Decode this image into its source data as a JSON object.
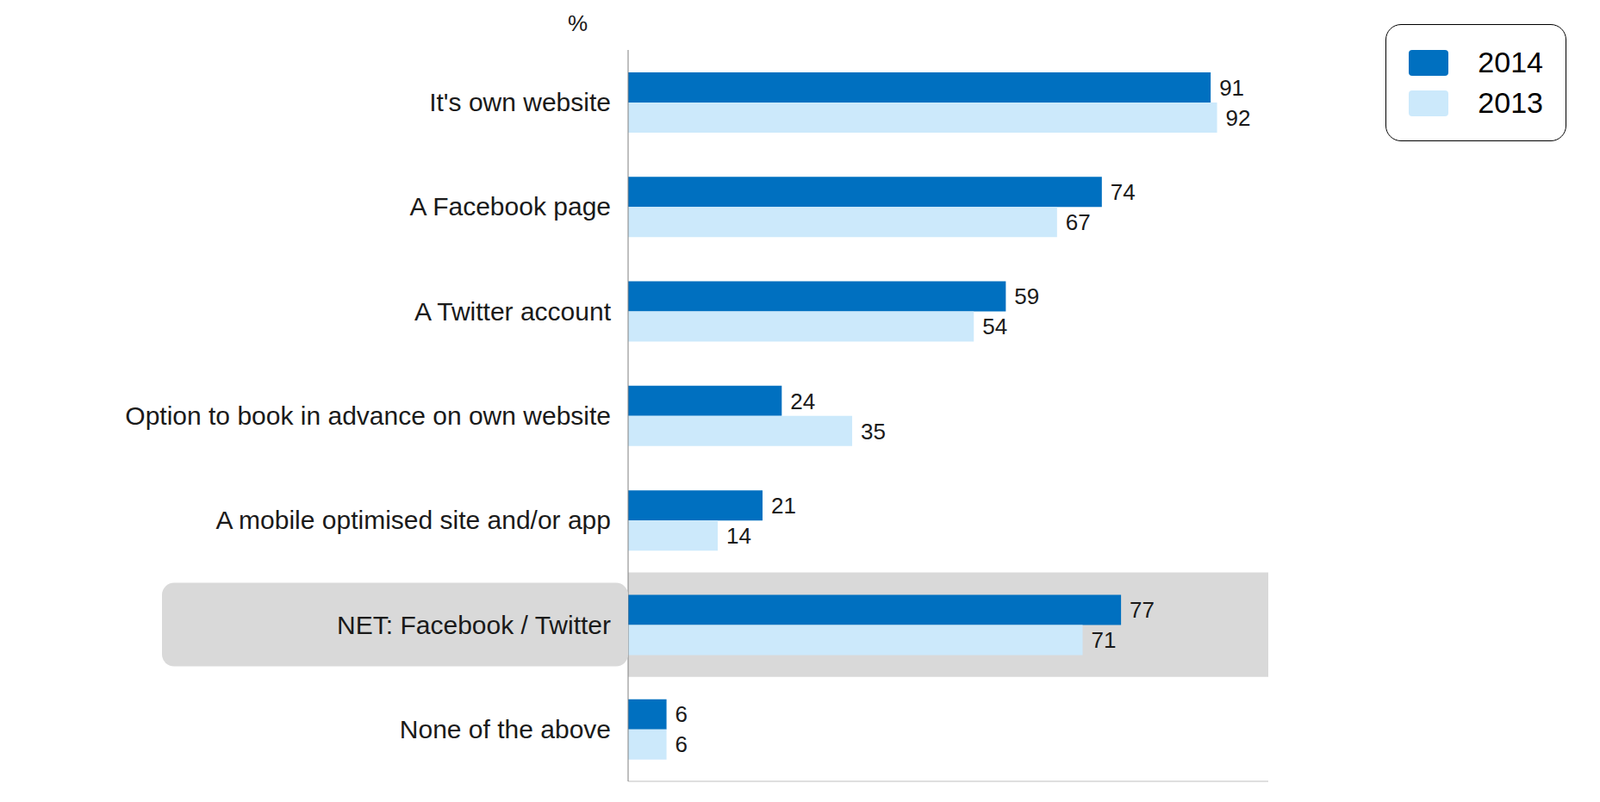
{
  "chart_data": {
    "type": "bar",
    "orientation": "horizontal",
    "xlabel": "%",
    "categories": [
      "It's own website",
      "A Facebook page",
      "A Twitter account",
      "Option to book in advance on own website",
      "A mobile optimised site and/or app",
      "NET: Facebook / Twitter",
      "None of the above"
    ],
    "series": [
      {
        "name": "2014",
        "color": "#0070C0",
        "values": [
          91,
          74,
          59,
          24,
          21,
          77,
          6
        ]
      },
      {
        "name": "2013",
        "color": "#CCE9FB",
        "values": [
          92,
          67,
          54,
          35,
          14,
          71,
          6
        ]
      }
    ],
    "xlim": [
      0,
      100
    ],
    "xticks": [],
    "tick_labels": "y",
    "data_labels": true,
    "legend": "top-right"
  }
}
